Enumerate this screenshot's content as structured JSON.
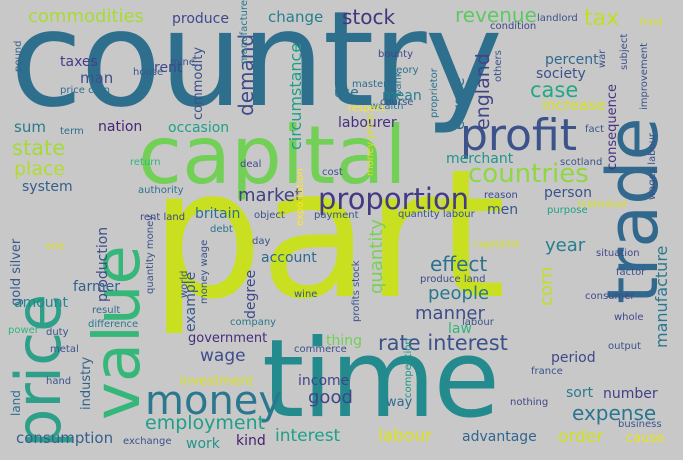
{
  "background": "#c8c8c8",
  "palette": [
    "#2e6f8e",
    "#3b528b",
    "#21908d",
    "#35b779",
    "#90d743",
    "#440154",
    "#fde725"
  ],
  "words": [
    {
      "text": "country",
      "color": "#2e6f8e"
    },
    {
      "text": "part",
      "color": "#c8e020"
    },
    {
      "text": "time",
      "color": "#238a8d"
    },
    {
      "text": "capital",
      "color": "#73d056"
    },
    {
      "text": "price",
      "color": "#2ea08a"
    },
    {
      "text": "value",
      "color": "#35b779"
    },
    {
      "text": "trade",
      "color": "#31688e"
    },
    {
      "text": "profit",
      "color": "#3b528b"
    },
    {
      "text": "money",
      "color": "#2a788e"
    },
    {
      "text": "proportion",
      "color": "#443a83"
    },
    {
      "text": "countries",
      "color": "#90d743"
    },
    {
      "text": "stock",
      "color": "#46337e"
    },
    {
      "text": "revenue",
      "color": "#5ec962"
    },
    {
      "text": "tax",
      "color": "#bddf26"
    },
    {
      "text": "commodities",
      "color": "#a8db34"
    },
    {
      "text": "produce",
      "color": "#3e4989"
    },
    {
      "text": "change",
      "color": "#277f8e"
    },
    {
      "text": "use",
      "color": "#2c718e"
    },
    {
      "text": "england",
      "color": "#414487"
    },
    {
      "text": "demand",
      "color": "#3e4a89"
    },
    {
      "text": "circumstance",
      "color": "#1f9e89"
    },
    {
      "text": "commodity",
      "color": "#3b518b"
    },
    {
      "text": "case",
      "color": "#22a884"
    },
    {
      "text": "europe",
      "color": "#2d708e"
    },
    {
      "text": "percent",
      "color": "#31688e"
    },
    {
      "text": "society",
      "color": "#3b528b"
    },
    {
      "text": "increase",
      "color": "#d2e21b"
    },
    {
      "text": "taxes",
      "color": "#433e85"
    },
    {
      "text": "man",
      "color": "#3c508b"
    },
    {
      "text": "rent",
      "color": "#3f4788"
    },
    {
      "text": "mean",
      "color": "#26828e"
    },
    {
      "text": "labourer",
      "color": "#46307e"
    },
    {
      "text": "nation",
      "color": "#482475"
    },
    {
      "text": "occasion",
      "color": "#1fa188"
    },
    {
      "text": "sum",
      "color": "#297a8e"
    },
    {
      "text": "state",
      "color": "#a5db36"
    },
    {
      "text": "place",
      "color": "#b0dd2f"
    },
    {
      "text": "system",
      "color": "#365d8d"
    },
    {
      "text": "market",
      "color": "#423f85"
    },
    {
      "text": "merchant",
      "color": "#1f958b"
    },
    {
      "text": "consequence",
      "color": "#46337e"
    },
    {
      "text": "person",
      "color": "#3b528b"
    },
    {
      "text": "britain",
      "color": "#2d718e"
    },
    {
      "text": "men",
      "color": "#39568c"
    },
    {
      "text": "manufacture",
      "color": "#2a778e"
    },
    {
      "text": "quantity",
      "color": "#7ad151"
    },
    {
      "text": "effect",
      "color": "#2c728e"
    },
    {
      "text": "year",
      "color": "#277e8e"
    },
    {
      "text": "people",
      "color": "#2a768e"
    },
    {
      "text": "corn",
      "color": "#c0df25"
    },
    {
      "text": "production",
      "color": "#3e4c8a"
    },
    {
      "text": "example",
      "color": "#38598c"
    },
    {
      "text": "account",
      "color": "#30698e"
    },
    {
      "text": "gold silver",
      "color": "#375b8d"
    },
    {
      "text": "farmer",
      "color": "#34608d"
    },
    {
      "text": "amount",
      "color": "#24878e"
    },
    {
      "text": "degree",
      "color": "#3e4989"
    },
    {
      "text": "manner",
      "color": "#3d4d8a"
    },
    {
      "text": "law",
      "color": "#31b57b"
    },
    {
      "text": "rate interest",
      "color": "#3b528b"
    },
    {
      "text": "government",
      "color": "#472c7a"
    },
    {
      "text": "wage",
      "color": "#3d4e8a"
    },
    {
      "text": "thing",
      "color": "#70cf57"
    },
    {
      "text": "period",
      "color": "#3f4788"
    },
    {
      "text": "industry",
      "color": "#34618d"
    },
    {
      "text": "investment",
      "color": "#d8e219"
    },
    {
      "text": "income",
      "color": "#414487"
    },
    {
      "text": "good",
      "color": "#404588"
    },
    {
      "text": "way",
      "color": "#2f6b8e"
    },
    {
      "text": "number",
      "color": "#424086"
    },
    {
      "text": "sort",
      "color": "#297b8e"
    },
    {
      "text": "expense",
      "color": "#2a768e"
    },
    {
      "text": "employment",
      "color": "#1fa088"
    },
    {
      "text": "consumption",
      "color": "#355f8d"
    },
    {
      "text": "work",
      "color": "#1f968b"
    },
    {
      "text": "kind",
      "color": "#481f70"
    },
    {
      "text": "interest",
      "color": "#1f9f88"
    },
    {
      "text": "labour",
      "color": "#dde318"
    },
    {
      "text": "advantage",
      "color": "#32658e"
    },
    {
      "text": "order",
      "color": "#d0e11c"
    },
    {
      "text": "cause",
      "color": "#e5e419"
    },
    {
      "text": "land",
      "color": "#2e6e8e"
    },
    {
      "text": "produce land",
      "color": "#3e4a89"
    },
    {
      "text": "scotland",
      "color": "#3b528b"
    },
    {
      "text": "mine",
      "color": "#3b528b"
    },
    {
      "text": "condition",
      "color": "#404688"
    },
    {
      "text": "landlord",
      "color": "#3b528b"
    },
    {
      "text": "fund",
      "color": "#d5e21a"
    },
    {
      "text": "bounty",
      "color": "#3e4989"
    },
    {
      "text": "theory",
      "color": "#2c718e"
    },
    {
      "text": "master",
      "color": "#2f6c8e"
    },
    {
      "text": "wealth",
      "color": "#2a788e"
    },
    {
      "text": "house",
      "color": "#39568c"
    },
    {
      "text": "price corn",
      "color": "#2e6e8e"
    },
    {
      "text": "term",
      "color": "#2f6c8e"
    },
    {
      "text": "fact",
      "color": "#3b528b"
    },
    {
      "text": "pound",
      "color": "#33638d"
    },
    {
      "text": "return",
      "color": "#31b57b"
    },
    {
      "text": "deal",
      "color": "#3e4989"
    },
    {
      "text": "cost",
      "color": "#3b528b"
    },
    {
      "text": "authority",
      "color": "#2c728e"
    },
    {
      "text": "reason",
      "color": "#3e4989"
    },
    {
      "text": "purpose",
      "color": "#1fa188"
    },
    {
      "text": "payment",
      "color": "#3b528b"
    },
    {
      "text": "quantity labour",
      "color": "#3b528b"
    },
    {
      "text": "rent land",
      "color": "#404588"
    },
    {
      "text": "debt",
      "color": "#2c718e"
    },
    {
      "text": "day",
      "color": "#3b528b"
    },
    {
      "text": "situation",
      "color": "#3e4989"
    },
    {
      "text": "consumer",
      "color": "#3e4989"
    },
    {
      "text": "whole",
      "color": "#3e4989"
    },
    {
      "text": "output",
      "color": "#3b528b"
    },
    {
      "text": "france",
      "color": "#3b528b"
    },
    {
      "text": "nothing",
      "color": "#3e4989"
    },
    {
      "text": "business",
      "color": "#3b528b"
    },
    {
      "text": "exchange",
      "color": "#3b528b"
    },
    {
      "text": "difference",
      "color": "#2a788e"
    },
    {
      "text": "result",
      "color": "#2e6e8e"
    },
    {
      "text": "duty",
      "color": "#3b528b"
    },
    {
      "text": "power",
      "color": "#31b57b"
    },
    {
      "text": "metal",
      "color": "#3b528b"
    },
    {
      "text": "hand",
      "color": "#3b528b"
    },
    {
      "text": "company",
      "color": "#2a788e"
    },
    {
      "text": "wine",
      "color": "#3b528b"
    },
    {
      "text": "commerce",
      "color": "#3b528b"
    },
    {
      "text": "competition",
      "color": "#1f968b"
    },
    {
      "text": "profits stock",
      "color": "#3b528b"
    },
    {
      "text": "quantity money",
      "color": "#3b528b"
    },
    {
      "text": "money wage",
      "color": "#3b528b"
    },
    {
      "text": "world",
      "color": "#3b528b"
    },
    {
      "text": "respect",
      "color": "#fde725"
    },
    {
      "text": "exportation",
      "color": "#fde725"
    },
    {
      "text": "money price",
      "color": "#d8e219"
    },
    {
      "text": "proprietor",
      "color": "#2c718e"
    },
    {
      "text": "bank",
      "color": "#2a788e"
    },
    {
      "text": "others",
      "color": "#3b528b"
    },
    {
      "text": "subject",
      "color": "#3b528b"
    },
    {
      "text": "improvement",
      "color": "#3b528b"
    },
    {
      "text": "manufacturer",
      "color": "#2a788e"
    },
    {
      "text": "war",
      "color": "#3b528b"
    },
    {
      "text": "factor",
      "color": "#3b528b"
    },
    {
      "text": "wages labour",
      "color": "#3b528b"
    },
    {
      "text": "individual",
      "color": "#d8e219"
    },
    {
      "text": "object",
      "color": "#3b528b"
    },
    {
      "text": "one",
      "color": "#d8e219"
    },
    {
      "text": "capitalist",
      "color": "#d8e219"
    },
    {
      "text": "course",
      "color": "#3b528b"
    },
    {
      "text": "labour",
      "color": "#3b528b"
    }
  ]
}
